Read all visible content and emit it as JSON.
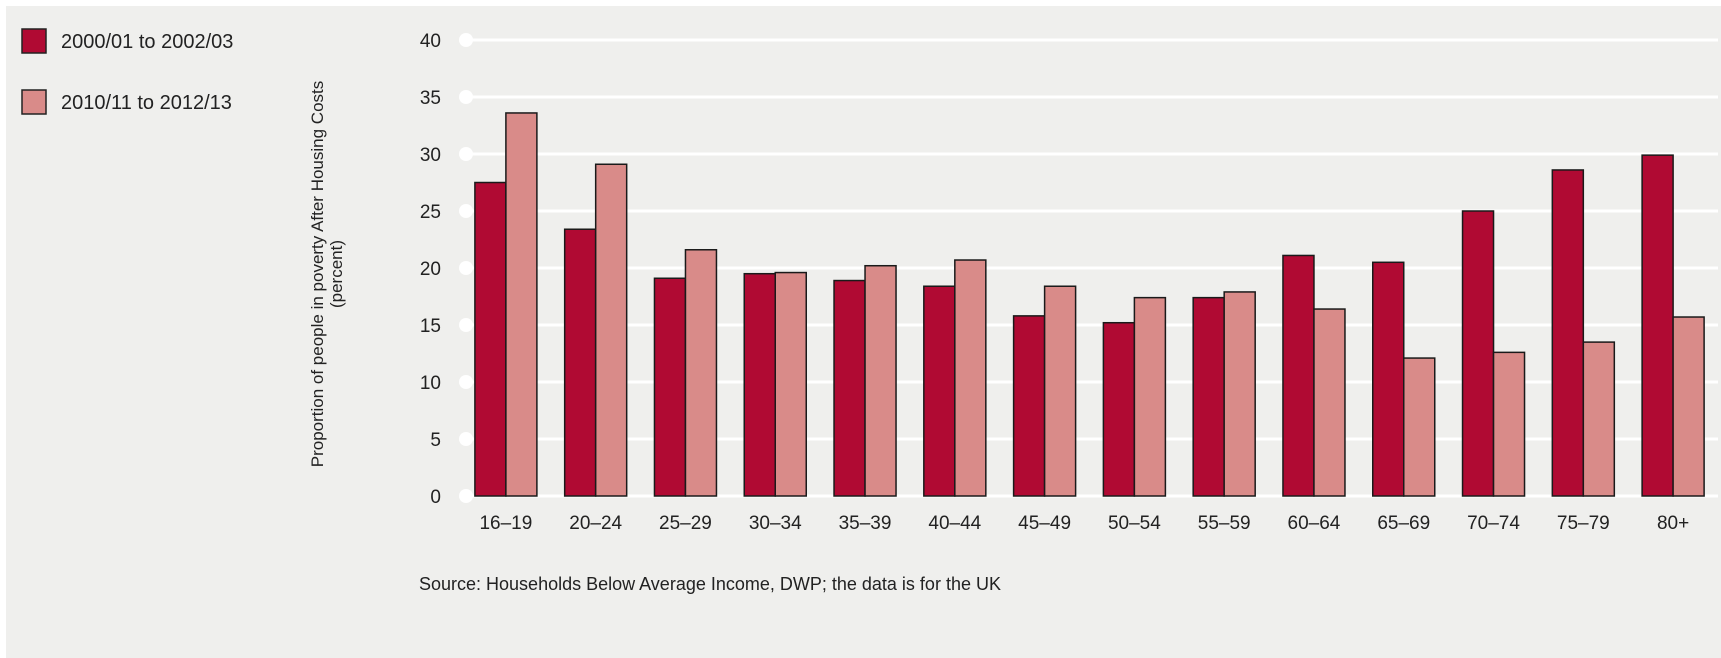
{
  "chart_data": {
    "type": "bar",
    "title": "",
    "xlabel": "",
    "ylabel_lines": [
      "Proportion of people in poverty After Housing Costs",
      "(percent)"
    ],
    "ylim": [
      0,
      40
    ],
    "yticks": [
      0,
      5,
      10,
      15,
      20,
      25,
      30,
      35,
      40
    ],
    "grid": true,
    "legend_position": "top-left",
    "categories": [
      "16–19",
      "20–24",
      "25–29",
      "30–34",
      "35–39",
      "40–44",
      "45–49",
      "50–54",
      "55–59",
      "60–64",
      "65–69",
      "70–74",
      "75–79",
      "80+"
    ],
    "series": [
      {
        "name": "2000/01 to 2002/03",
        "color": "#b00a33",
        "values": [
          27.5,
          23.4,
          19.1,
          19.5,
          18.9,
          18.4,
          15.8,
          15.2,
          17.4,
          21.1,
          20.5,
          25.0,
          28.6,
          29.9
        ]
      },
      {
        "name": "2010/11 to 2012/13",
        "color": "#d98b89",
        "values": [
          33.6,
          29.1,
          21.6,
          19.6,
          20.2,
          20.7,
          18.4,
          17.4,
          17.9,
          16.4,
          12.1,
          12.6,
          13.5,
          15.7
        ]
      }
    ],
    "source": "Source: Households Below Average Income, DWP; the data is for the UK"
  }
}
